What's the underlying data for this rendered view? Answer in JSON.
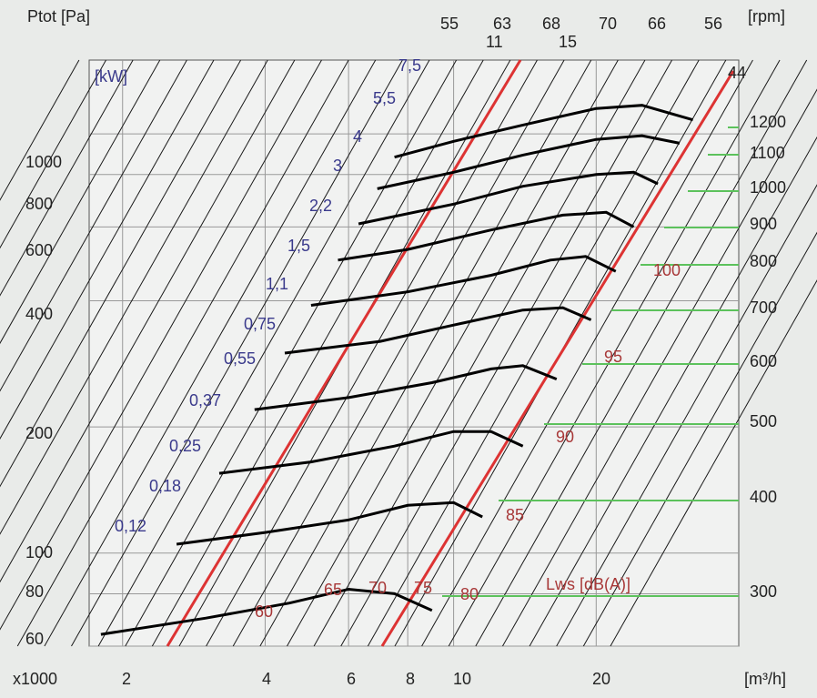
{
  "chart_data": {
    "type": "line",
    "title": "",
    "ylabel": "Ptot [Pa]",
    "xlabel": "[m³/h]",
    "x_multiplier_label": "x1000",
    "kw_unit_label": "[kW]",
    "rpm_unit_label": "[rpm]",
    "lws_label": "Lws [dB(A)]",
    "x_scale": "log",
    "y_scale": "log",
    "xlim": [
      1.7,
      40
    ],
    "ylim": [
      60,
      1500
    ],
    "x_ticks": [
      "2",
      "4",
      "6",
      "8",
      "10",
      "20"
    ],
    "x_tick_values": [
      2,
      4,
      6,
      8,
      10,
      20
    ],
    "y_ticks": [
      "1000",
      "800",
      "600",
      "400",
      "200",
      "100",
      "80",
      "60"
    ],
    "y_tick_values": [
      1000,
      800,
      600,
      400,
      200,
      100,
      80,
      60
    ],
    "grid": true,
    "kw_labels": [
      "7,5",
      "5,5",
      "4",
      "3",
      "2,2",
      "1,5",
      "1,1",
      "0,75",
      "0,55",
      "0,37",
      "0,25",
      "0,18",
      "0,12"
    ],
    "rpm_top_labels": [
      "55",
      "63",
      "68",
      "70",
      "66",
      "56"
    ],
    "efficiency_top_labels": [
      "11",
      "15"
    ],
    "rpm_top_right_label": "44",
    "speed_labels_right": [
      "1200",
      "1100",
      "1000",
      "900",
      "800",
      "700",
      "600",
      "500",
      "400",
      "300"
    ],
    "db_labels": [
      "100",
      "95",
      "90",
      "85",
      "80",
      "75",
      "70",
      "65",
      "60"
    ],
    "fan_curves": [
      {
        "rpm": 1200,
        "points": [
          [
            7.5,
            880
          ],
          [
            10,
            960
          ],
          [
            14,
            1050
          ],
          [
            20,
            1150
          ],
          [
            25,
            1170
          ],
          [
            32,
            1080
          ]
        ]
      },
      {
        "rpm": 1100,
        "points": [
          [
            6.9,
            740
          ],
          [
            10,
            810
          ],
          [
            14,
            890
          ],
          [
            20,
            970
          ],
          [
            25,
            990
          ],
          [
            30,
            950
          ]
        ]
      },
      {
        "rpm": 1000,
        "points": [
          [
            6.3,
            610
          ],
          [
            10,
            680
          ],
          [
            14,
            750
          ],
          [
            20,
            800
          ],
          [
            24,
            810
          ],
          [
            27,
            760
          ]
        ]
      },
      {
        "rpm": 900,
        "points": [
          [
            5.7,
            500
          ],
          [
            8,
            530
          ],
          [
            12,
            590
          ],
          [
            17,
            640
          ],
          [
            21,
            650
          ],
          [
            24,
            600
          ]
        ]
      },
      {
        "rpm": 800,
        "points": [
          [
            5,
            390
          ],
          [
            8,
            420
          ],
          [
            12,
            460
          ],
          [
            16,
            500
          ],
          [
            19,
            510
          ],
          [
            22,
            470
          ]
        ]
      },
      {
        "rpm": 700,
        "points": [
          [
            4.4,
            300
          ],
          [
            7,
            320
          ],
          [
            10,
            350
          ],
          [
            14,
            380
          ],
          [
            17,
            385
          ],
          [
            19.5,
            360
          ]
        ]
      },
      {
        "rpm": 600,
        "points": [
          [
            3.8,
            220
          ],
          [
            6,
            235
          ],
          [
            9,
            255
          ],
          [
            12,
            275
          ],
          [
            14,
            280
          ],
          [
            16.5,
            260
          ]
        ]
      },
      {
        "rpm": 500,
        "points": [
          [
            3.2,
            155
          ],
          [
            5,
            165
          ],
          [
            7.5,
            180
          ],
          [
            10,
            195
          ],
          [
            12,
            195
          ],
          [
            14,
            180
          ]
        ]
      },
      {
        "rpm": 400,
        "points": [
          [
            2.6,
            105
          ],
          [
            4,
            112
          ],
          [
            6,
            120
          ],
          [
            8,
            130
          ],
          [
            10,
            132
          ],
          [
            11.5,
            122
          ]
        ]
      },
      {
        "rpm": 300,
        "points": [
          [
            1.8,
            64
          ],
          [
            3,
            70
          ],
          [
            4.5,
            76
          ],
          [
            6,
            82
          ],
          [
            7.5,
            80
          ],
          [
            9,
            73
          ]
        ]
      }
    ]
  }
}
